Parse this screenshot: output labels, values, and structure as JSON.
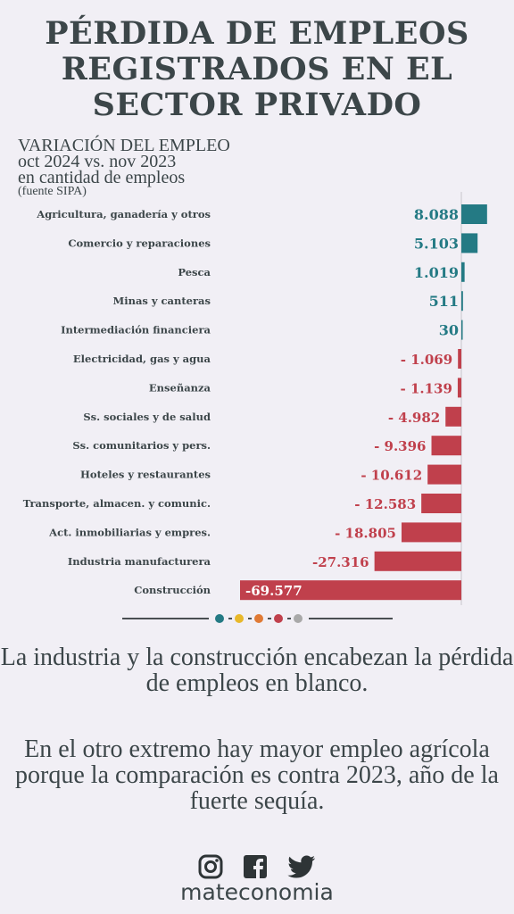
{
  "title": {
    "line1": "PÉRDIDA DE EMPLEOS",
    "line2": "REGISTRADOS EN EL",
    "line3": "SECTOR PRIVADO"
  },
  "subtitle": {
    "line1": "VARIACIÓN DEL EMPLEO",
    "line2": "oct 2024 vs. nov 2023",
    "line3": "en cantidad de empleos",
    "line4": "(fuente SIPA)"
  },
  "colors": {
    "positive": "#247a84",
    "negative": "#c0404c",
    "dot_teal": "#247a84",
    "dot_yellow": "#e8b82a",
    "dot_orange": "#e07a35",
    "dot_red": "#c0404c",
    "dot_gray": "#a9a9a9"
  },
  "chart_data": {
    "type": "bar",
    "orientation": "horizontal",
    "categories": [
      "Agricultura, ganadería y otros",
      "Comercio y reparaciones",
      "Pesca",
      "Minas y canteras",
      "Intermediación financiera",
      "Electricidad, gas y agua",
      "Enseñanza",
      "Ss. sociales y de salud",
      "Ss. comunitarios y pers.",
      "Hoteles y restaurantes",
      "Transporte, almacen. y comunic.",
      "Act. inmobiliarias y empres.",
      "Industria manufacturera",
      "Construcción"
    ],
    "values": [
      8088,
      5103,
      1019,
      511,
      30,
      -1069,
      -1139,
      -4982,
      -9396,
      -10612,
      -12583,
      -18805,
      -27316,
      -69577
    ],
    "labels": [
      "8.088",
      "5.103",
      "1.019",
      "511",
      "30",
      "- 1.069",
      "- 1.139",
      "- 4.982",
      "- 9.396",
      "- 10.612",
      "- 12.583",
      "- 18.805",
      "-27.316",
      "-69.577"
    ]
  },
  "paragraphs": [
    "La industria y la construcción encabezan la pérdida de empleos en blanco.",
    "En el otro extremo hay mayor empleo agrícola porque la comparación es contra 2023, año de la fuerte sequía."
  ],
  "social": {
    "icons": [
      "instagram-icon",
      "facebook-icon",
      "twitter-icon"
    ],
    "brand": "mateconomia"
  }
}
